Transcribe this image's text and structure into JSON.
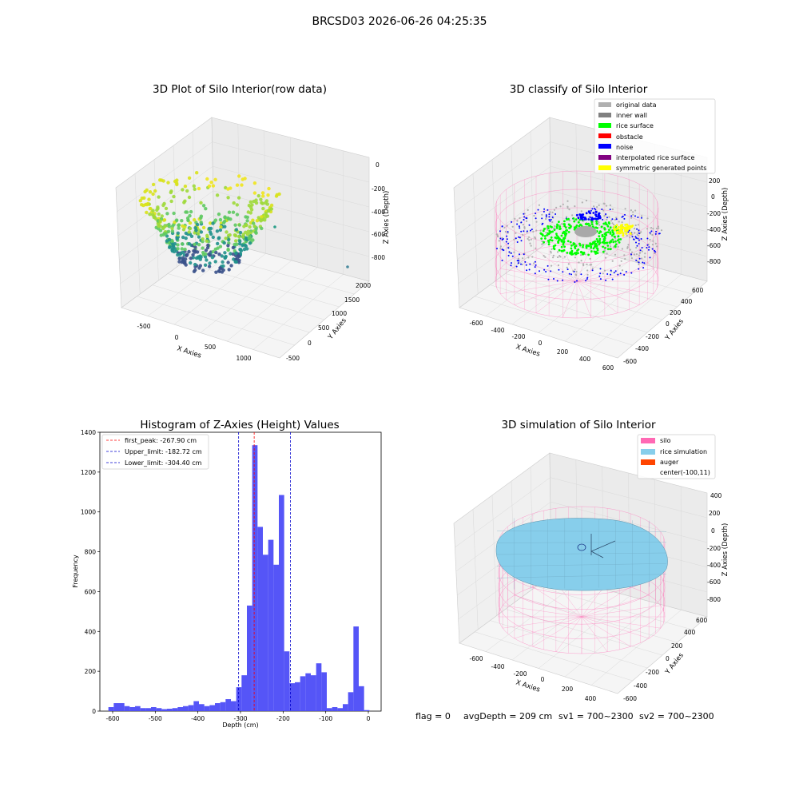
{
  "figure": {
    "suptitle": "BRCSD03 2026-06-26 04:25:35",
    "status_line": {
      "flag": "flag = 0",
      "avg": "avgDepth = 209 cm",
      "sv1": "sv1 = 700~2300",
      "sv2": "sv2 = 700~2300"
    }
  },
  "colors": {
    "histogram_bar": "#4c4cf7",
    "first_peak": "#ff0000",
    "limits": "#0000cc",
    "silo_mesh": "#ff69b4",
    "rice_surface_sim": "#87ceeb",
    "auger": "#ff4500",
    "original_data": "#b0b0b0",
    "inner_wall": "#808080",
    "rice_surface": "#00ff00",
    "obstacle": "#ff0000",
    "noise": "#0000ff",
    "interpolated": "#800080",
    "symmetric": "#ffff00"
  },
  "chart_data": [
    {
      "type": "scatter",
      "title": "3D Plot of Silo Interior(row data)",
      "xlabel": "X Axies",
      "ylabel": "Y Axies",
      "zlabel": "Z Axies (Depth)",
      "x_ticks": [
        "-500",
        "0",
        "500",
        "1000"
      ],
      "y_ticks": [
        "-500",
        "0",
        "500",
        "1000",
        "1500",
        "2000"
      ],
      "z_ticks": [
        "0",
        "-200",
        "-400",
        "-600",
        "-800"
      ],
      "xlim": [
        -800,
        1300
      ],
      "ylim": [
        -600,
        2100
      ],
      "zlim": [
        -900,
        0
      ],
      "colormap": "viridis"
    },
    {
      "type": "scatter",
      "title": "3D classify of Silo Interior",
      "xlabel": "X Axies",
      "ylabel": "Y Axies",
      "zlabel": "Z Axies (Depth)",
      "x_ticks": [
        "-600",
        "-400",
        "-200",
        "0",
        "200",
        "400",
        "600"
      ],
      "y_ticks": [
        "-600",
        "-400",
        "-200",
        "0",
        "200",
        "400",
        "600"
      ],
      "z_ticks": [
        "200",
        "0",
        "-200",
        "-400",
        "-600",
        "-800"
      ],
      "legend_position": "top-right",
      "legend": [
        "original data",
        "inner wall",
        "rice surface",
        "obstacle",
        "noise",
        "interpolated rice surface",
        "symmetric generated points"
      ]
    },
    {
      "type": "bar",
      "title": "Histogram of Z-Axies (Height) Values",
      "xlabel": "Depth (cm)",
      "ylabel": "Frequency",
      "xlim": [
        -630,
        30
      ],
      "ylim": [
        0,
        1400
      ],
      "x_ticks": [
        -600,
        -500,
        -400,
        -300,
        -200,
        -100,
        0
      ],
      "y_ticks": [
        0,
        200,
        400,
        600,
        800,
        1000,
        1200,
        1400
      ],
      "bin_width": 12.5,
      "bin_start": -610,
      "values": [
        20,
        40,
        40,
        25,
        20,
        25,
        15,
        15,
        20,
        15,
        10,
        12,
        15,
        20,
        25,
        30,
        50,
        35,
        25,
        30,
        40,
        45,
        60,
        50,
        120,
        180,
        530,
        1335,
        925,
        785,
        860,
        735,
        1085,
        300,
        140,
        145,
        175,
        190,
        180,
        240,
        195,
        15,
        20,
        15,
        35,
        95,
        425,
        125,
        5
      ],
      "vlines": [
        {
          "label": "first_peak: -267.90 cm",
          "x": -267.9,
          "color": "red"
        },
        {
          "label": "Upper_limit: -182.72 cm",
          "x": -182.72,
          "color": "blue"
        },
        {
          "label": "Lower_limit: -304.40 cm",
          "x": -304.4,
          "color": "blue"
        }
      ],
      "legend_position": "top-left"
    },
    {
      "type": "scatter",
      "title": "3D simulation of Silo Interior",
      "xlabel": "X Axies",
      "ylabel": "Y Axies",
      "zlabel": "Z Axies (Depth)",
      "x_ticks": [
        "-600",
        "-400",
        "-200",
        "0",
        "200",
        "400"
      ],
      "y_ticks": [
        "-600",
        "-400",
        "-200",
        "0",
        "200",
        "400",
        "600"
      ],
      "z_ticks": [
        "400",
        "200",
        "0",
        "-200",
        "-400",
        "-600",
        "-800"
      ],
      "legend_position": "top-right",
      "legend": [
        "silo",
        "rice simulation",
        "auger",
        "center(-100,11)"
      ]
    }
  ]
}
